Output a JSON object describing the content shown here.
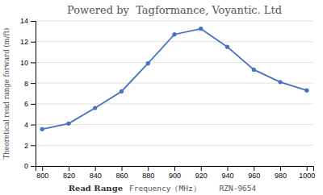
{
  "chart_data": {
    "type": "line",
    "title": "Powered by  Tagformance, Voyantic. Ltd",
    "xlabel": [
      "Read Range",
      "Frequency（MHz）    RZN-9654"
    ],
    "ylabel": "Theoretical read range forward (m/ft)",
    "x": [
      800,
      820,
      840,
      860,
      880,
      900,
      920,
      940,
      960,
      980,
      1000
    ],
    "values": [
      3.55,
      4.1,
      5.6,
      7.2,
      9.9,
      12.7,
      13.25,
      11.5,
      9.3,
      8.1,
      7.3
    ],
    "color": "#4472c4",
    "marker": "circle",
    "xlim": [
      795,
      1005
    ],
    "ylim": [
      0,
      14
    ],
    "xticks": [
      800,
      820,
      840,
      860,
      880,
      900,
      920,
      940,
      960,
      980,
      1000
    ],
    "yticks": [
      0,
      2,
      4,
      6,
      8,
      10,
      12,
      14
    ],
    "grid": true
  }
}
